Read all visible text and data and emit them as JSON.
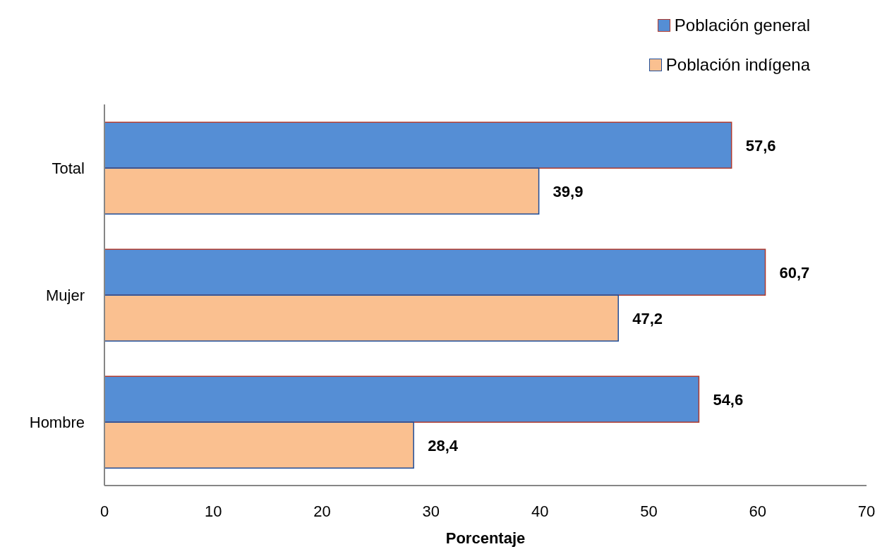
{
  "chart_data": {
    "type": "bar",
    "orientation": "horizontal",
    "xlabel": "Porcentaje",
    "categories": [
      "Total",
      "Mujer",
      "Hombre"
    ],
    "series": [
      {
        "name": "Población general",
        "color": "#558ed5",
        "values": [
          57.6,
          60.7,
          54.6
        ],
        "value_labels": [
          "57,6",
          "60,7",
          "54,6"
        ]
      },
      {
        "name": "Población indígena",
        "color": "#fac090",
        "values": [
          39.9,
          47.2,
          28.4
        ],
        "value_labels": [
          "39,9",
          "47,2",
          "28,4"
        ]
      }
    ],
    "xlim": [
      0,
      70
    ],
    "xticks": [
      0,
      10,
      20,
      30,
      40,
      50,
      60,
      70
    ],
    "grid": false,
    "legend": "top right"
  }
}
